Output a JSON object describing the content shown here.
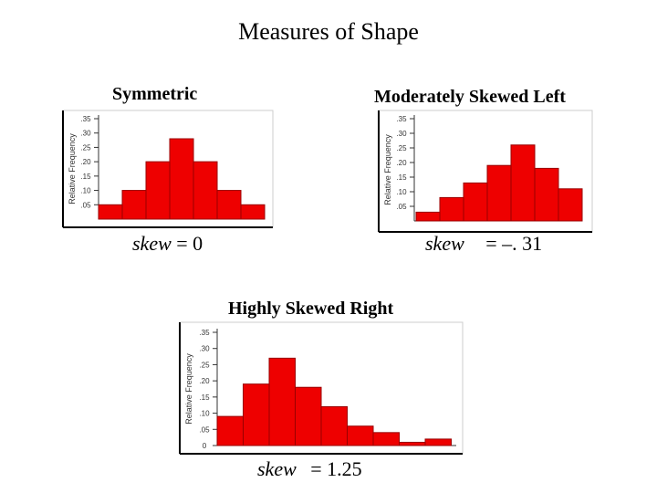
{
  "slide": {
    "title": "Measures of Shape"
  },
  "colors": {
    "bar": "#ee0000",
    "bar_edge": "#990000",
    "axis": "#333333",
    "frame": "#000000"
  },
  "chart_data": [
    {
      "type": "bar",
      "title": "Symmetric",
      "ylabel": "Relative Frequency",
      "yticks": [
        ".05",
        ".10",
        ".15",
        ".20",
        ".25",
        ".30",
        ".35"
      ],
      "ylim": [
        0,
        0.35
      ],
      "values": [
        0.05,
        0.1,
        0.2,
        0.28,
        0.2,
        0.1,
        0.05
      ],
      "skew_label": "skew",
      "skew_value": "= 0"
    },
    {
      "type": "bar",
      "title": "Moderately Skewed Left",
      "ylabel": "Relative Frequency",
      "yticks": [
        ".05",
        ".10",
        ".15",
        ".20",
        ".25",
        ".30",
        ".35"
      ],
      "ylim": [
        0,
        0.35
      ],
      "values": [
        0.03,
        0.08,
        0.13,
        0.19,
        0.26,
        0.18,
        0.11
      ],
      "skew_label": "skew",
      "skew_value": "= –. 31"
    },
    {
      "type": "bar",
      "title": "Highly Skewed Right",
      "ylabel": "Relative Frequency",
      "yticks": [
        "0",
        ".05",
        ".10",
        ".15",
        ".20",
        ".25",
        ".30",
        ".35"
      ],
      "ylim": [
        0,
        0.35
      ],
      "values": [
        0.09,
        0.19,
        0.27,
        0.18,
        0.12,
        0.06,
        0.04,
        0.01,
        0.02
      ],
      "skew_label": "skew",
      "skew_value": "= 1.25"
    }
  ]
}
